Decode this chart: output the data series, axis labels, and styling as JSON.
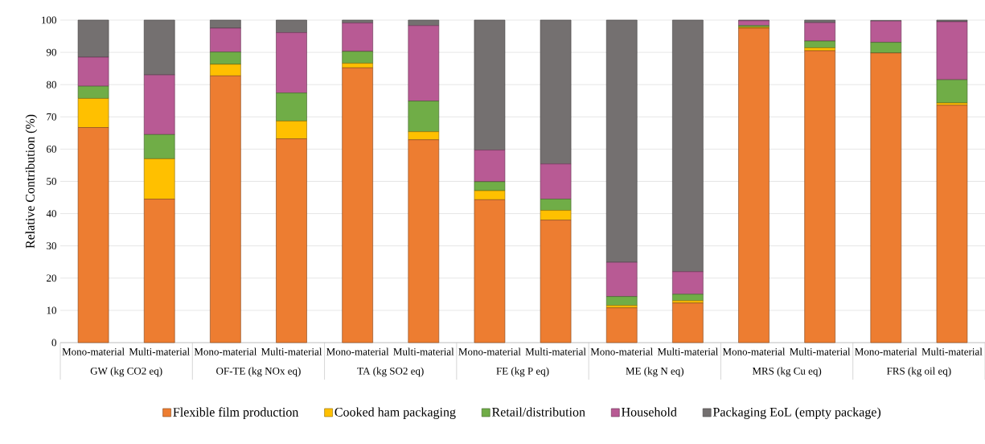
{
  "chart_data": {
    "type": "bar",
    "stacked": true,
    "ylabel": "Relative Contribution (%)",
    "categories": [
      "Mono-material",
      "Multi-material",
      "Mono-material",
      "Multi-material",
      "Mono-material",
      "Multi-material",
      "Mono-material",
      "Multi-material",
      "Mono-material",
      "Multi-material",
      "Mono-material",
      "Multi-material",
      "Mono-material",
      "Multi-material"
    ],
    "annotations": [
      "GW (kg CO2 eq)",
      "OF-TE (kg NOx eq)",
      "TA (kg SO2 eq)",
      "FE (kg P eq)",
      "ME (kg N eq)",
      "MRS (kg Cu eq)",
      "FRS (kg oil eq)"
    ],
    "series": [
      {
        "name": "Flexible film production",
        "color": "#ed7d31",
        "values": [
          66.7,
          44.5,
          82.7,
          63.2,
          85.2,
          62.9,
          44.3,
          38.0,
          10.8,
          12.3,
          97.5,
          90.5,
          89.8,
          73.6
        ]
      },
      {
        "name": "Cooked ham packaging",
        "color": "#ffc000",
        "values": [
          9.0,
          12.5,
          3.6,
          5.5,
          1.4,
          2.5,
          2.8,
          3.0,
          0.7,
          0.7,
          0.3,
          0.9,
          null,
          0.7
        ]
      },
      {
        "name": "Retail/distribution",
        "color": "#70ad47",
        "values": [
          3.8,
          7.5,
          3.8,
          8.7,
          3.7,
          9.5,
          2.8,
          3.5,
          2.8,
          2.0,
          0.5,
          2.1,
          3.3,
          7.2
        ]
      },
      {
        "name": "Household",
        "color": "#b85a94",
        "values": [
          9.0,
          18.5,
          7.4,
          18.7,
          8.8,
          23.4,
          9.8,
          10.9,
          10.6,
          7.0,
          1.5,
          5.7,
          6.6,
          18.0
        ]
      },
      {
        "name": "Packaging EoL (empty package)",
        "color": "#747070",
        "values": [
          11.5,
          17.0,
          2.5,
          3.9,
          0.9,
          1.7,
          40.3,
          44.6,
          75.1,
          78.0,
          0.2,
          0.8,
          0.2,
          0.5
        ]
      }
    ],
    "ylim": [
      0,
      100
    ],
    "yticks": [
      0,
      10,
      20,
      30,
      40,
      50,
      60,
      70,
      80,
      90,
      100
    ],
    "grid": "y",
    "legend": "bottom"
  }
}
